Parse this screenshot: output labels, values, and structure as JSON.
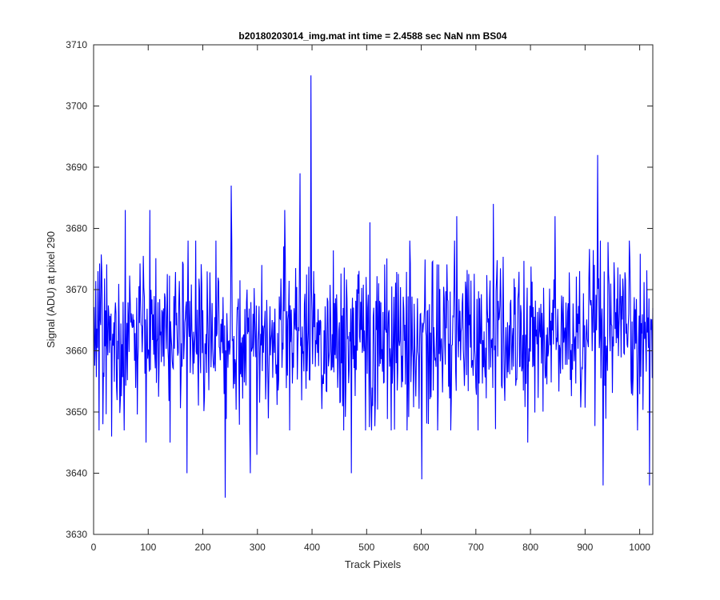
{
  "chart_data": {
    "type": "line",
    "title": "b20180203014_img.mat int time = 2.4588 sec  NaN nm BS04",
    "xlabel": "Track Pixels",
    "ylabel": "Signal (ADU) at pixel 290",
    "xlim": [
      0,
      1024
    ],
    "ylim": [
      3630,
      3710
    ],
    "xticks": [
      0,
      100,
      200,
      300,
      400,
      500,
      600,
      700,
      800,
      900,
      1000
    ],
    "yticks": [
      3630,
      3640,
      3650,
      3660,
      3670,
      3680,
      3690,
      3700,
      3710
    ],
    "grid": false,
    "legend": "none",
    "series": [
      {
        "color": "#0000ff",
        "x_start": 1,
        "x_step": 1,
        "y_mean": 3662,
        "y_std": 6.5,
        "peaks": [
          {
            "x": 8,
            "y": 3673
          },
          {
            "x": 17,
            "y": 3648
          },
          {
            "x": 33,
            "y": 3646
          },
          {
            "x": 58,
            "y": 3683
          },
          {
            "x": 96,
            "y": 3645
          },
          {
            "x": 103,
            "y": 3683
          },
          {
            "x": 140,
            "y": 3645
          },
          {
            "x": 171,
            "y": 3640
          },
          {
            "x": 241,
            "y": 3636
          },
          {
            "x": 252,
            "y": 3687
          },
          {
            "x": 287,
            "y": 3640
          },
          {
            "x": 299,
            "y": 3643
          },
          {
            "x": 350,
            "y": 3683
          },
          {
            "x": 378,
            "y": 3689
          },
          {
            "x": 398,
            "y": 3705
          },
          {
            "x": 472,
            "y": 3640
          },
          {
            "x": 506,
            "y": 3681
          },
          {
            "x": 601,
            "y": 3639
          },
          {
            "x": 665,
            "y": 3682
          },
          {
            "x": 732,
            "y": 3684
          },
          {
            "x": 795,
            "y": 3645
          },
          {
            "x": 845,
            "y": 3682
          },
          {
            "x": 923,
            "y": 3692
          },
          {
            "x": 933,
            "y": 3638
          },
          {
            "x": 1018,
            "y": 3638
          }
        ]
      }
    ]
  }
}
